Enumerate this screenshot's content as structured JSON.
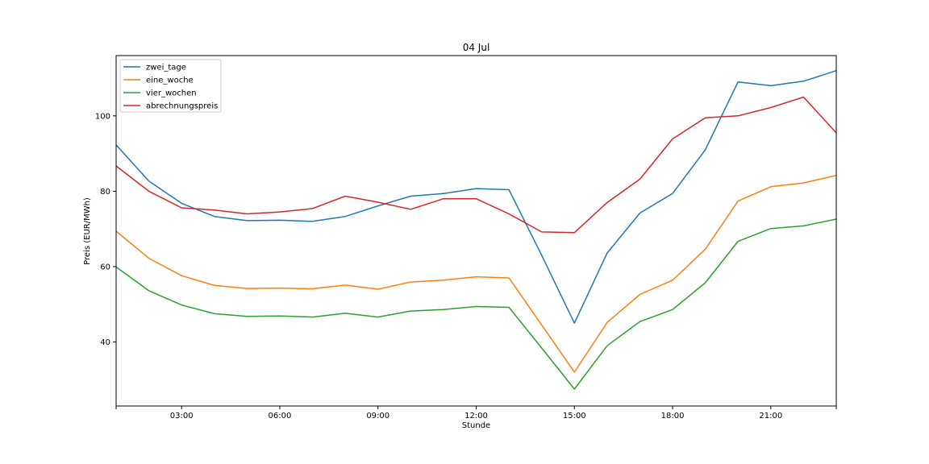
{
  "chart_data": {
    "type": "line",
    "title": "04 Jul",
    "xlabel": "Stunde",
    "ylabel": "Preis (EUR/MWh)",
    "x": [
      "01:00",
      "02:00",
      "03:00",
      "04:00",
      "05:00",
      "06:00",
      "07:00",
      "08:00",
      "09:00",
      "10:00",
      "11:00",
      "12:00",
      "13:00",
      "14:00",
      "15:00",
      "16:00",
      "17:00",
      "18:00",
      "19:00",
      "20:00",
      "21:00",
      "22:00",
      "23:00"
    ],
    "xticks": [
      "03:00",
      "06:00",
      "09:00",
      "12:00",
      "15:00",
      "18:00",
      "21:00"
    ],
    "yticks": [
      40,
      60,
      80,
      100
    ],
    "ylim": [
      23,
      116
    ],
    "legend_position": "upper-left",
    "grid": false,
    "series": [
      {
        "name": "zwei_tage",
        "color": "#1f77b4",
        "values": [
          92.3,
          82.7,
          76.8,
          73.3,
          72.2,
          72.3,
          72.0,
          73.3,
          76.1,
          78.7,
          79.4,
          80.7,
          80.4,
          63.0,
          45.0,
          63.6,
          74.2,
          79.4,
          91.0,
          109.0,
          108.0,
          109.2,
          112.0
        ]
      },
      {
        "name": "eine_woche",
        "color": "#ff7f0e",
        "values": [
          69.4,
          62.2,
          57.6,
          55.0,
          54.2,
          54.3,
          54.1,
          55.1,
          54.0,
          55.9,
          56.4,
          57.3,
          57.0,
          44.5,
          32.0,
          45.2,
          52.6,
          56.4,
          64.6,
          77.4,
          81.2,
          82.2,
          84.2
        ]
      },
      {
        "name": "vier_wochen",
        "color": "#2ca02c",
        "values": [
          59.9,
          53.6,
          49.8,
          47.5,
          46.8,
          46.9,
          46.6,
          47.6,
          46.6,
          48.2,
          48.6,
          49.4,
          49.2,
          38.4,
          27.5,
          39.0,
          45.4,
          48.6,
          55.7,
          66.7,
          70.1,
          70.8,
          72.6
        ]
      },
      {
        "name": "abrechnungspreis",
        "color": "#d62728",
        "values": [
          86.7,
          80.0,
          75.6,
          75.0,
          74.0,
          74.5,
          75.4,
          78.7,
          77.1,
          75.2,
          78.0,
          78.0,
          74.0,
          69.2,
          69.0,
          77.0,
          83.2,
          93.9,
          99.5,
          100.0,
          102.2,
          105.0,
          95.5
        ]
      }
    ]
  }
}
